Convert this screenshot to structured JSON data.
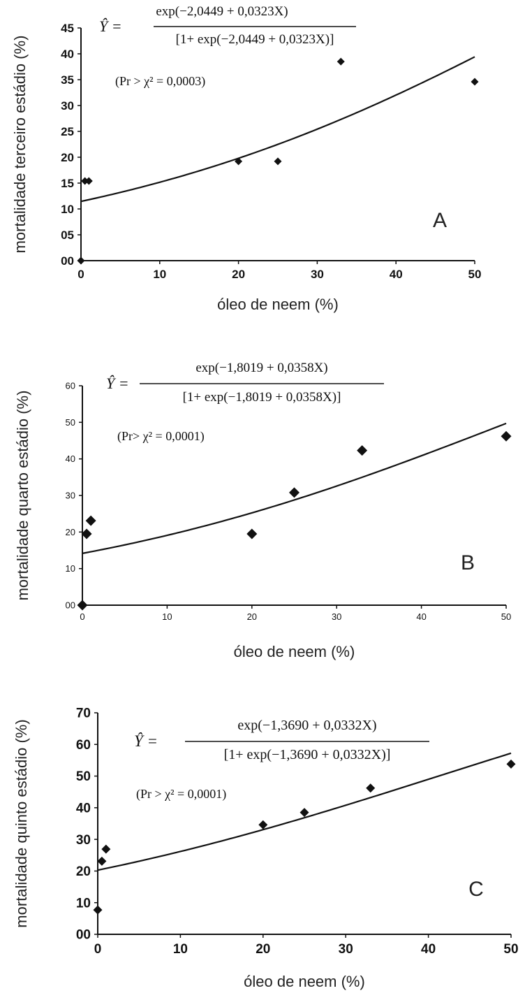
{
  "chart_data": [
    {
      "type": "scatter",
      "panel_label": "A",
      "xlabel": "óleo de neem (%)",
      "ylabel": "mortalidade terceiro estádio (%)",
      "xlim": [
        0,
        50
      ],
      "ylim": [
        0,
        45
      ],
      "x_ticks": [
        0,
        10,
        20,
        30,
        40,
        50
      ],
      "x_tick_labels": [
        "0",
        "10",
        "20",
        "30",
        "40",
        "50"
      ],
      "y_ticks": [
        0,
        5,
        10,
        15,
        20,
        25,
        30,
        35,
        40,
        45
      ],
      "y_tick_labels": [
        "00",
        "05",
        "10",
        "15",
        "20",
        "25",
        "30",
        "35",
        "40",
        "45"
      ],
      "points": {
        "x": [
          0,
          0.5,
          1,
          20,
          25,
          33,
          50
        ],
        "y": [
          0,
          15.4,
          15.4,
          19.2,
          19.2,
          38.5,
          34.6
        ]
      },
      "fit": {
        "a": -2.0449,
        "b": 0.0323
      },
      "equation": {
        "lhs": "Ŷ =",
        "numerator": "exp(−2,0449 + 0,0323X)",
        "denominator": "[1+ exp(−2,0449 + 0,0323X)]",
        "significance": "(Pr > χ² = 0,0003)"
      },
      "grid": false,
      "legend": "none"
    },
    {
      "type": "scatter",
      "panel_label": "B",
      "xlabel": "óleo de neem (%)",
      "ylabel": "mortalidade quarto estádio (%)",
      "xlim": [
        0,
        50
      ],
      "ylim": [
        0,
        60
      ],
      "x_ticks": [
        0,
        10,
        20,
        30,
        40,
        50
      ],
      "x_tick_labels": [
        "0",
        "10",
        "20",
        "30",
        "40",
        "50"
      ],
      "y_ticks": [
        0,
        10,
        20,
        30,
        40,
        50,
        60
      ],
      "y_tick_labels": [
        "00",
        "10",
        "20",
        "30",
        "40",
        "50",
        "60"
      ],
      "points": {
        "x": [
          0,
          0.5,
          1,
          20,
          25,
          33,
          50
        ],
        "y": [
          0,
          19.5,
          23.1,
          19.5,
          30.8,
          42.3,
          46.2
        ]
      },
      "fit": {
        "a": -1.8019,
        "b": 0.0358
      },
      "equation": {
        "lhs": "Ŷ =",
        "numerator": "exp(−1,8019 + 0,0358X)",
        "denominator": "[1+ exp(−1,8019 + 0,0358X)]",
        "significance": "(Pr> χ² = 0,0001)"
      },
      "grid": false,
      "legend": "none"
    },
    {
      "type": "scatter",
      "panel_label": "C",
      "xlabel": "óleo de neem (%)",
      "ylabel": "mortalidade quinto estádio (%)",
      "xlim": [
        0,
        50
      ],
      "ylim": [
        0,
        70
      ],
      "x_ticks": [
        0,
        10,
        20,
        30,
        40,
        50
      ],
      "x_tick_labels": [
        "0",
        "10",
        "20",
        "30",
        "40",
        "50"
      ],
      "y_ticks": [
        0,
        10,
        20,
        30,
        40,
        50,
        60,
        70
      ],
      "y_tick_labels": [
        "00",
        "10",
        "20",
        "30",
        "40",
        "50",
        "60",
        "70"
      ],
      "points": {
        "x": [
          0,
          0.5,
          1,
          20,
          25,
          33,
          50
        ],
        "y": [
          7.7,
          23.1,
          26.9,
          34.6,
          38.5,
          46.2,
          53.8
        ]
      },
      "fit": {
        "a": -1.369,
        "b": 0.0332
      },
      "equation": {
        "lhs": "Ŷ =",
        "numerator": "exp(−1,3690 + 0,0332X)",
        "denominator": "[1+ exp(−1,3690 + 0,0332X)]",
        "significance": "(Pr > χ² = 0,0001)"
      },
      "grid": false,
      "legend": "none"
    }
  ]
}
